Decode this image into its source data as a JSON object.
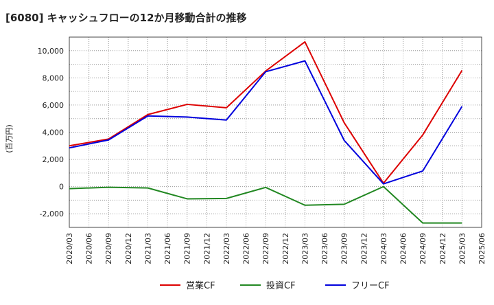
{
  "chart_data": {
    "type": "line",
    "title": "[6080]  キャッシュフローの12か月移動合計の推移",
    "ylabel": "(百万円)",
    "xlabel": "",
    "ylim": [
      -3000,
      11000
    ],
    "grid": true,
    "legend_position": "bottom",
    "x": [
      "2020/03",
      "2020/06",
      "2020/09",
      "2020/12",
      "2021/03",
      "2021/06",
      "2021/09",
      "2021/12",
      "2022/03",
      "2022/06",
      "2022/09",
      "2022/12",
      "2023/03",
      "2023/06",
      "2023/09",
      "2023/12",
      "2024/03",
      "2024/06",
      "2024/09",
      "2024/12",
      "2025/03",
      "2025/06"
    ],
    "y_ticks": [
      {
        "value": 10000,
        "label": "10,000"
      },
      {
        "value": 8000,
        "label": "8,000"
      },
      {
        "value": 6000,
        "label": "6,000"
      },
      {
        "value": 4000,
        "label": "4,000"
      },
      {
        "value": 2000,
        "label": "2,000"
      },
      {
        "value": 0,
        "label": "0"
      },
      {
        "value": -2000,
        "label": "-2,000"
      }
    ],
    "series": [
      {
        "name": "営業CF",
        "color": "#dd0000",
        "points": [
          [
            "2020/03",
            3000
          ],
          [
            "2020/09",
            3500
          ],
          [
            "2021/03",
            5300
          ],
          [
            "2021/09",
            6050
          ],
          [
            "2022/03",
            5800
          ],
          [
            "2022/09",
            8500
          ],
          [
            "2023/03",
            10650
          ],
          [
            "2023/09",
            4700
          ],
          [
            "2024/03",
            250
          ],
          [
            "2024/09",
            3800
          ],
          [
            "2025/03",
            8550
          ]
        ]
      },
      {
        "name": "投資CF",
        "color": "#228822",
        "points": [
          [
            "2020/03",
            -150
          ],
          [
            "2020/09",
            -50
          ],
          [
            "2021/03",
            -100
          ],
          [
            "2021/09",
            -900
          ],
          [
            "2022/03",
            -870
          ],
          [
            "2022/09",
            -60
          ],
          [
            "2023/03",
            -1370
          ],
          [
            "2023/09",
            -1300
          ],
          [
            "2024/03",
            0
          ],
          [
            "2024/09",
            -2680
          ],
          [
            "2025/03",
            -2680
          ]
        ]
      },
      {
        "name": "フリーCF",
        "color": "#0000dd",
        "points": [
          [
            "2020/03",
            2850
          ],
          [
            "2020/09",
            3430
          ],
          [
            "2021/03",
            5200
          ],
          [
            "2021/09",
            5120
          ],
          [
            "2022/03",
            4900
          ],
          [
            "2022/09",
            8450
          ],
          [
            "2023/03",
            9250
          ],
          [
            "2023/09",
            3400
          ],
          [
            "2024/03",
            200
          ],
          [
            "2024/09",
            1150
          ],
          [
            "2025/03",
            5900
          ]
        ]
      }
    ]
  }
}
